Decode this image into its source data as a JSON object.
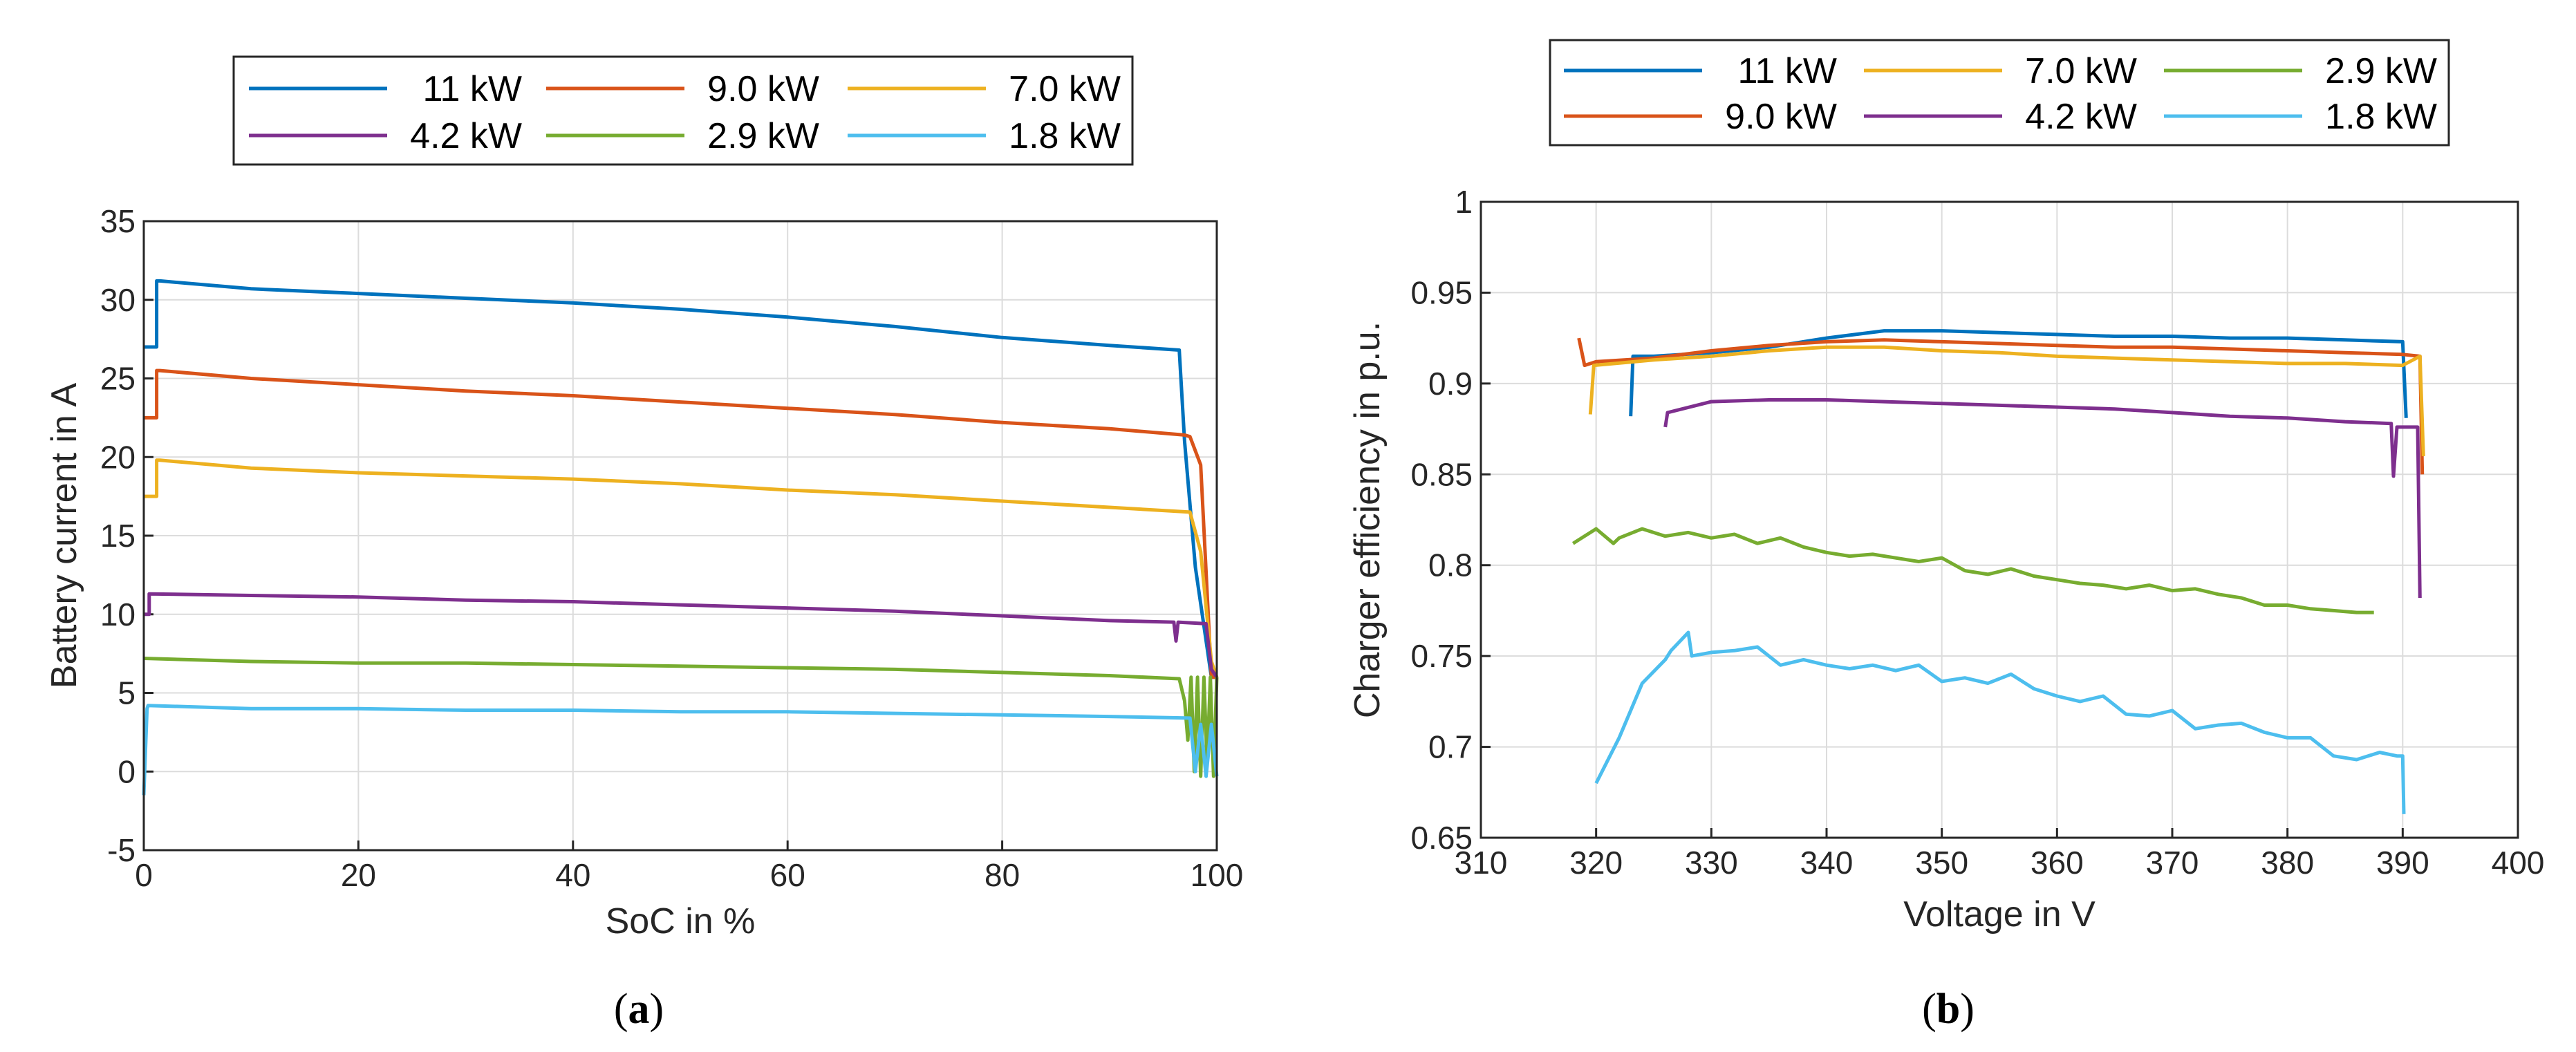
{
  "chart_data": [
    {
      "type": "line",
      "panel_label": "a",
      "xlabel": "SoC in %",
      "ylabel": "Battery current in A",
      "xlim": [
        0,
        100
      ],
      "ylim": [
        -5,
        35
      ],
      "xticks": [
        0,
        20,
        40,
        60,
        80,
        100
      ],
      "yticks": [
        -5,
        0,
        5,
        10,
        15,
        20,
        25,
        30,
        35
      ],
      "grid": true,
      "legend_position": "top-center",
      "series": [
        {
          "name": "11 kW",
          "color": "#0072BD",
          "x": [
            0,
            1.2,
            1.2,
            1.5,
            10,
            20,
            30,
            40,
            50,
            60,
            70,
            80,
            90,
            96.5,
            97,
            98,
            99.5,
            100
          ],
          "y": [
            27,
            27,
            31.2,
            31.2,
            30.7,
            30.4,
            30.1,
            29.8,
            29.4,
            28.9,
            28.3,
            27.6,
            27.1,
            26.8,
            21,
            13,
            6,
            6
          ]
        },
        {
          "name": "9.0 kW",
          "color": "#D95319",
          "x": [
            0,
            1.2,
            1.2,
            1.5,
            10,
            20,
            30,
            40,
            50,
            60,
            70,
            80,
            90,
            97,
            97.5,
            98.5,
            99.5,
            100
          ],
          "y": [
            22.5,
            22.5,
            25.5,
            25.5,
            25,
            24.6,
            24.2,
            23.9,
            23.5,
            23.1,
            22.7,
            22.2,
            21.8,
            21.4,
            21.3,
            19.5,
            6,
            6
          ]
        },
        {
          "name": "7.0 kW",
          "color": "#EDB120",
          "x": [
            0,
            1.2,
            1.2,
            1.5,
            10,
            20,
            30,
            40,
            50,
            60,
            70,
            80,
            90,
            97.5,
            98.5,
            99.5,
            100
          ],
          "y": [
            17.5,
            17.5,
            19.8,
            19.8,
            19.3,
            19,
            18.8,
            18.6,
            18.3,
            17.9,
            17.6,
            17.2,
            16.8,
            16.5,
            14,
            7,
            6
          ]
        },
        {
          "name": "4.2 kW",
          "color": "#7E2F8E",
          "x": [
            0,
            0.5,
            0.5,
            10,
            20,
            30,
            40,
            50,
            60,
            70,
            80,
            90,
            96,
            96.2,
            96.4,
            99,
            99.5,
            100
          ],
          "y": [
            10,
            10,
            11.3,
            11.2,
            11.1,
            10.9,
            10.8,
            10.6,
            10.4,
            10.2,
            9.9,
            9.6,
            9.5,
            8.3,
            9.5,
            9.4,
            6.5,
            6
          ]
        },
        {
          "name": "2.9 kW",
          "color": "#77AC30",
          "x": [
            0,
            10,
            20,
            30,
            40,
            50,
            60,
            70,
            80,
            90,
            96.5,
            97,
            97.3,
            97.6,
            97.9,
            98.2,
            98.5,
            98.8,
            99.1,
            99.4,
            99.7,
            100
          ],
          "y": [
            7.2,
            7,
            6.9,
            6.9,
            6.8,
            6.7,
            6.6,
            6.5,
            6.3,
            6.1,
            5.9,
            4.5,
            2,
            6,
            0,
            6,
            -0.3,
            6,
            0.5,
            6,
            -0.3,
            6
          ]
        },
        {
          "name": "1.8 kW",
          "color": "#4DBEEE",
          "x": [
            0,
            0.3,
            0.4,
            10,
            20,
            30,
            40,
            50,
            60,
            70,
            80,
            90,
            97.5,
            98,
            98.5,
            99,
            99.5,
            100
          ],
          "y": [
            -1.5,
            4,
            4.2,
            4,
            4,
            3.9,
            3.9,
            3.8,
            3.8,
            3.7,
            3.6,
            3.5,
            3.4,
            0,
            3,
            -0.3,
            3,
            -0.3
          ]
        }
      ]
    },
    {
      "type": "line",
      "panel_label": "b",
      "xlabel": "Voltage in V",
      "ylabel": "Charger efficiency in p.u.",
      "xlim": [
        310,
        400
      ],
      "ylim": [
        0.65,
        1
      ],
      "xticks": [
        310,
        320,
        330,
        340,
        350,
        360,
        370,
        380,
        390,
        400
      ],
      "yticks": [
        0.65,
        0.7,
        0.75,
        0.8,
        0.85,
        0.9,
        0.95,
        1
      ],
      "grid": true,
      "legend_position": "top-center",
      "series": [
        {
          "name": "11 kW",
          "color": "#0072BD",
          "x": [
            323,
            323.2,
            325,
            330,
            335,
            340,
            345,
            350,
            355,
            360,
            365,
            370,
            375,
            380,
            385,
            390,
            390.3
          ],
          "y": [
            0.882,
            0.915,
            0.915,
            0.917,
            0.92,
            0.925,
            0.929,
            0.929,
            0.928,
            0.927,
            0.926,
            0.926,
            0.925,
            0.925,
            0.924,
            0.923,
            0.881
          ]
        },
        {
          "name": "9.0 kW",
          "color": "#D95319",
          "x": [
            318.5,
            319,
            320,
            325,
            330,
            335,
            340,
            345,
            350,
            355,
            360,
            365,
            370,
            375,
            380,
            385,
            390,
            391.5,
            391.7
          ],
          "y": [
            0.925,
            0.91,
            0.912,
            0.914,
            0.918,
            0.921,
            0.923,
            0.924,
            0.923,
            0.922,
            0.921,
            0.92,
            0.92,
            0.919,
            0.918,
            0.917,
            0.916,
            0.915,
            0.85
          ]
        },
        {
          "name": "7.0 kW",
          "color": "#EDB120",
          "x": [
            319.5,
            319.8,
            325,
            330,
            335,
            340,
            345,
            350,
            355,
            360,
            365,
            370,
            375,
            380,
            385,
            390,
            391.5,
            391.8
          ],
          "y": [
            0.883,
            0.91,
            0.913,
            0.915,
            0.918,
            0.92,
            0.92,
            0.918,
            0.917,
            0.915,
            0.914,
            0.913,
            0.912,
            0.911,
            0.911,
            0.91,
            0.915,
            0.86
          ]
        },
        {
          "name": "4.2 kW",
          "color": "#7E2F8E",
          "x": [
            326,
            326.2,
            330,
            335,
            340,
            345,
            350,
            355,
            360,
            365,
            370,
            375,
            380,
            385,
            389,
            389.2,
            389.5,
            391.3,
            391.5
          ],
          "y": [
            0.876,
            0.884,
            0.89,
            0.891,
            0.891,
            0.89,
            0.889,
            0.888,
            0.887,
            0.886,
            0.884,
            0.882,
            0.881,
            0.879,
            0.878,
            0.849,
            0.876,
            0.876,
            0.782
          ]
        },
        {
          "name": "2.9 kW",
          "color": "#77AC30",
          "x": [
            318,
            320,
            321.5,
            322,
            324,
            326,
            328,
            330,
            332,
            334,
            336,
            338,
            340,
            342,
            344,
            346,
            348,
            350,
            352,
            354,
            356,
            358,
            360,
            362,
            364,
            366,
            368,
            370,
            372,
            374,
            376,
            378,
            380,
            382,
            384,
            386,
            387.5
          ],
          "y": [
            0.812,
            0.82,
            0.812,
            0.815,
            0.82,
            0.816,
            0.818,
            0.815,
            0.817,
            0.812,
            0.815,
            0.81,
            0.807,
            0.805,
            0.806,
            0.804,
            0.802,
            0.804,
            0.797,
            0.795,
            0.798,
            0.794,
            0.792,
            0.79,
            0.789,
            0.787,
            0.789,
            0.786,
            0.787,
            0.784,
            0.782,
            0.778,
            0.778,
            0.776,
            0.775,
            0.774,
            0.774
          ]
        },
        {
          "name": "1.8 kW",
          "color": "#4DBEEE",
          "x": [
            320,
            322,
            324,
            326,
            326.5,
            328,
            328.3,
            330,
            332,
            334,
            336,
            338,
            340,
            342,
            344,
            346,
            348,
            350,
            352,
            354,
            356,
            358,
            360,
            362,
            364,
            366,
            368,
            370,
            372,
            374,
            376,
            378,
            380,
            382,
            384,
            386,
            388,
            389.5,
            390,
            390.1
          ],
          "y": [
            0.68,
            0.705,
            0.735,
            0.748,
            0.753,
            0.763,
            0.75,
            0.752,
            0.753,
            0.755,
            0.745,
            0.748,
            0.745,
            0.743,
            0.745,
            0.742,
            0.745,
            0.736,
            0.738,
            0.735,
            0.74,
            0.732,
            0.728,
            0.725,
            0.728,
            0.718,
            0.717,
            0.72,
            0.71,
            0.712,
            0.713,
            0.708,
            0.705,
            0.705,
            0.695,
            0.693,
            0.697,
            0.695,
            0.695,
            0.663
          ]
        }
      ]
    }
  ]
}
